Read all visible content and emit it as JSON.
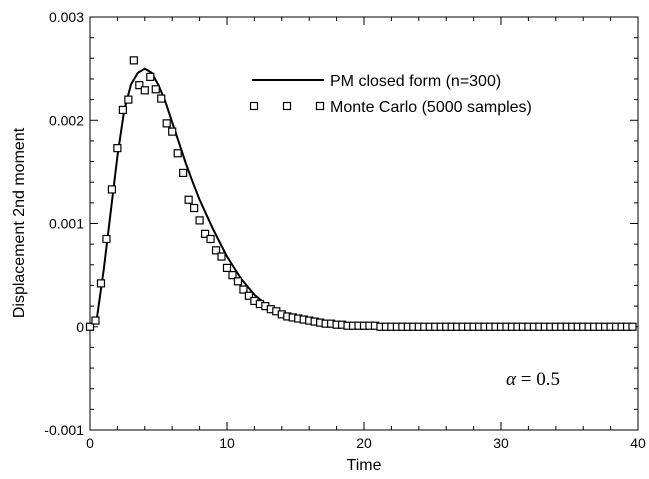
{
  "chart_data": {
    "type": "line",
    "xlabel": "Time",
    "ylabel": "Displacement 2nd moment",
    "xlim": [
      0,
      40
    ],
    "ylim": [
      -0.001,
      0.003
    ],
    "x_ticks": [
      0,
      10,
      20,
      30,
      40
    ],
    "x_tick_labels": [
      "0",
      "10",
      "20",
      "30",
      "40"
    ],
    "y_ticks": [
      -0.001,
      0,
      0.001,
      0.002,
      0.003
    ],
    "y_tick_labels": [
      "-0.001",
      "0",
      "0.001",
      "0.002",
      "0.003"
    ],
    "grid": false,
    "legend_position": "top-right",
    "annotation": {
      "symbol": "α",
      "text": " = 0.5"
    },
    "series": [
      {
        "name": "PM closed form (n=300)",
        "style": "line",
        "color": "#000000",
        "x": [
          0,
          0.5,
          1,
          1.5,
          2,
          2.5,
          3,
          3.5,
          4,
          4.5,
          5,
          5.5,
          6,
          6.5,
          7,
          7.5,
          8,
          9,
          10,
          11,
          12,
          13,
          14,
          15,
          16,
          17,
          18,
          20,
          22,
          25,
          30,
          35,
          39.6
        ],
        "y": [
          0,
          8e-05,
          0.00055,
          0.0011,
          0.00165,
          0.0021,
          0.00235,
          0.00246,
          0.0025,
          0.00246,
          0.00234,
          0.00218,
          0.00198,
          0.00178,
          0.00158,
          0.0014,
          0.00123,
          0.00094,
          0.00068,
          0.00047,
          0.00031,
          0.0002,
          0.00012,
          8e-05,
          5e-05,
          3e-05,
          2e-05,
          5e-06,
          2e-06,
          0,
          0,
          0,
          0
        ]
      },
      {
        "name": "Monte Carlo (5000 samples)",
        "style": "markers",
        "marker": "square",
        "color": "#000000",
        "x": [
          0,
          0.4,
          0.8,
          1.2,
          1.6,
          2.0,
          2.4,
          2.8,
          3.2,
          3.6,
          4.0,
          4.4,
          4.8,
          5.2,
          5.6,
          6.0,
          6.4,
          6.8,
          7.2,
          7.6,
          8.0,
          8.4,
          8.8,
          9.2,
          9.6,
          10.0,
          10.4,
          10.8,
          11.2,
          11.6,
          12.0,
          12.4,
          12.8,
          13.2,
          13.6,
          14.0,
          14.4,
          14.8,
          15.2,
          15.6,
          16.0,
          16.4,
          16.8,
          17.2,
          17.6,
          18.0,
          18.4,
          18.8,
          19.2,
          19.6,
          20.0,
          20.4,
          20.8,
          21.2,
          21.6,
          22.0,
          22.4,
          22.8,
          23.2,
          23.6,
          24.0,
          24.4,
          24.8,
          25.2,
          25.6,
          26.0,
          26.4,
          26.8,
          27.2,
          27.6,
          28.0,
          28.4,
          28.8,
          29.2,
          29.6,
          30.0,
          30.4,
          30.8,
          31.2,
          31.6,
          32.0,
          32.4,
          32.8,
          33.2,
          33.6,
          34.0,
          34.4,
          34.8,
          35.2,
          35.6,
          36.0,
          36.4,
          36.8,
          37.2,
          37.6,
          38.0,
          38.4,
          38.8,
          39.2,
          39.6
        ],
        "y": [
          0,
          6e-05,
          0.00042,
          0.00085,
          0.00133,
          0.00173,
          0.0021,
          0.0022,
          0.00258,
          0.00234,
          0.00229,
          0.00242,
          0.0023,
          0.00221,
          0.00197,
          0.00189,
          0.00168,
          0.00149,
          0.00123,
          0.00115,
          0.00103,
          0.0009,
          0.00085,
          0.00074,
          0.00068,
          0.00057,
          0.0005,
          0.00044,
          0.00036,
          0.0003,
          0.00025,
          0.00022,
          0.0002,
          0.00017,
          0.00015,
          0.00012,
          0.0001,
          9e-05,
          8e-05,
          7e-05,
          6e-05,
          5e-05,
          4e-05,
          3e-05,
          3e-05,
          2e-05,
          2e-05,
          1e-05,
          1e-05,
          1e-05,
          1e-05,
          1e-05,
          1e-05,
          0,
          0,
          0,
          0,
          0,
          0,
          0,
          0,
          0,
          0,
          0,
          0,
          0,
          0,
          0,
          0,
          0,
          0,
          0,
          0,
          0,
          0,
          0,
          0,
          0,
          0,
          0,
          0,
          0,
          0,
          0,
          0,
          0,
          0,
          0,
          0,
          0,
          0,
          0,
          0,
          0,
          0,
          0,
          0,
          0,
          0,
          0
        ]
      }
    ]
  }
}
